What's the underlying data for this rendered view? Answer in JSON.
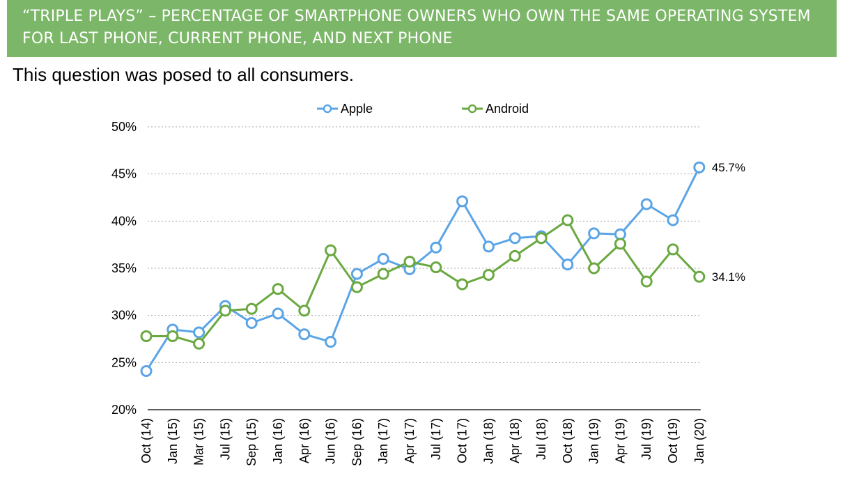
{
  "banner": {
    "line1": "“TRIPLE PLAYS” – PERCENTAGE OF SMARTPHONE OWNERS WHO OWN THE SAME OPERATING SYSTEM",
    "line2": "FOR LAST PHONE, CURRENT PHONE, AND NEXT PHONE"
  },
  "subtitle": "This question was posed to all consumers.",
  "colors": {
    "banner": "#7cb668",
    "apple": "#5ba4e6",
    "android": "#6aa840",
    "grid": "#a6a6a6"
  },
  "chart_data": {
    "type": "line",
    "categories": [
      "Oct (14)",
      "Jan (15)",
      "Mar (15)",
      "Jul (15)",
      "Sep (15)",
      "Jan (16)",
      "Apr (16)",
      "Jun (16)",
      "Sep (16)",
      "Jan (17)",
      "Apr (17)",
      "Jul (17)",
      "Oct (17)",
      "Jan (18)",
      "Apr (18)",
      "Jul (18)",
      "Oct (18)",
      "Jan (19)",
      "Apr (19)",
      "Jul (19)",
      "Oct (19)",
      "Jan (20)"
    ],
    "series": [
      {
        "name": "Apple",
        "color": "#5ba4e6",
        "values": [
          24.1,
          28.5,
          28.2,
          31.0,
          29.2,
          30.2,
          28.0,
          27.2,
          34.4,
          36.0,
          34.9,
          37.2,
          42.1,
          37.3,
          38.2,
          38.4,
          35.4,
          38.7,
          38.6,
          41.8,
          40.1,
          45.7
        ]
      },
      {
        "name": "Android",
        "color": "#6aa840",
        "values": [
          27.8,
          27.8,
          27.0,
          30.5,
          30.7,
          32.8,
          30.5,
          36.9,
          33.0,
          34.4,
          35.7,
          35.1,
          33.3,
          34.3,
          36.3,
          38.2,
          40.1,
          35.0,
          37.6,
          33.6,
          37.0,
          34.1
        ]
      }
    ],
    "y_ticks": [
      "20%",
      "25%",
      "30%",
      "35%",
      "40%",
      "45%",
      "50%"
    ],
    "ylim": [
      20,
      50
    ],
    "grid": true,
    "legend_position": "top",
    "end_labels": {
      "Apple": "45.7%",
      "Android": "34.1%"
    }
  }
}
